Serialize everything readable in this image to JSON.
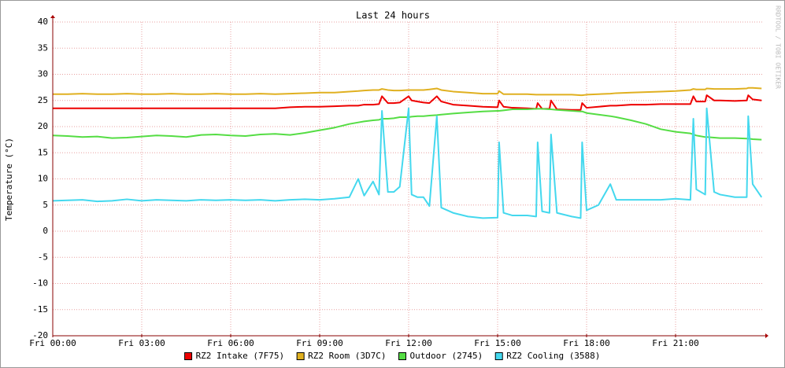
{
  "chart_data": {
    "type": "line",
    "title": "Last 24 hours",
    "y_label": "Temperature (°C)",
    "watermark": "RRDTOOL / TOBI OETIKER",
    "xlim": [
      0,
      23.92
    ],
    "xticks": [
      {
        "value": 0,
        "label": "Fri 00:00"
      },
      {
        "value": 3,
        "label": "Fri 03:00"
      },
      {
        "value": 6,
        "label": "Fri 06:00"
      },
      {
        "value": 9,
        "label": "Fri 09:00"
      },
      {
        "value": 12,
        "label": "Fri 12:00"
      },
      {
        "value": 15,
        "label": "Fri 15:00"
      },
      {
        "value": 18,
        "label": "Fri 18:00"
      },
      {
        "value": 21,
        "label": "Fri 21:00"
      }
    ],
    "ylim": [
      -20,
      40
    ],
    "yticks": [
      -20,
      -15,
      -10,
      -5,
      0,
      5,
      10,
      15,
      20,
      25,
      30,
      35,
      40
    ],
    "grid": true,
    "x": [
      0,
      0.5,
      1,
      1.5,
      2,
      2.5,
      3,
      3.5,
      4,
      4.5,
      5,
      5.5,
      6,
      6.5,
      7,
      7.5,
      8,
      8.5,
      9,
      9.5,
      10,
      10.3,
      10.5,
      10.8,
      11,
      11.1,
      11.3,
      11.5,
      11.7,
      12,
      12.1,
      12.3,
      12.5,
      12.7,
      12.95,
      13.1,
      13.5,
      14,
      14.5,
      15,
      15.05,
      15.2,
      15.5,
      16,
      16.3,
      16.35,
      16.5,
      16.75,
      16.8,
      17,
      17.5,
      17.8,
      17.85,
      18,
      18.4,
      18.8,
      19,
      19.5,
      20,
      20.5,
      21,
      21.5,
      21.6,
      21.7,
      22,
      22.05,
      22.3,
      22.5,
      23,
      23.4,
      23.45,
      23.6,
      23.9
    ],
    "series": [
      {
        "name": "RZ2 Intake (7F75)",
        "color": "#ee0000",
        "values": [
          23.5,
          23.5,
          23.5,
          23.5,
          23.5,
          23.5,
          23.5,
          23.5,
          23.5,
          23.5,
          23.5,
          23.5,
          23.5,
          23.5,
          23.5,
          23.5,
          23.7,
          23.8,
          23.8,
          23.9,
          24,
          24,
          24.2,
          24.2,
          24.3,
          25.8,
          24.5,
          24.5,
          24.6,
          25.8,
          25,
          24.8,
          24.6,
          24.5,
          25.8,
          24.8,
          24.2,
          24,
          23.8,
          23.7,
          25,
          23.8,
          23.6,
          23.5,
          23.4,
          24.5,
          23.4,
          23.4,
          25,
          23.3,
          23.2,
          23.2,
          24.5,
          23.6,
          23.8,
          24,
          24,
          24.2,
          24.2,
          24.3,
          24.3,
          24.3,
          25.8,
          24.8,
          24.8,
          26,
          25,
          25,
          24.9,
          25,
          26,
          25.2,
          25
        ]
      },
      {
        "name": "RZ2 Room (3D7C)",
        "color": "#e0b020",
        "values": [
          26.2,
          26.2,
          26.3,
          26.2,
          26.2,
          26.3,
          26.2,
          26.2,
          26.3,
          26.2,
          26.2,
          26.3,
          26.2,
          26.2,
          26.3,
          26.2,
          26.3,
          26.4,
          26.5,
          26.5,
          26.7,
          26.8,
          26.9,
          27,
          27,
          27.2,
          27,
          26.9,
          26.9,
          27,
          27,
          27,
          27,
          27.1,
          27.3,
          27,
          26.7,
          26.5,
          26.3,
          26.3,
          26.8,
          26.2,
          26.2,
          26.2,
          26.1,
          26.1,
          26.1,
          26.1,
          26.1,
          26.1,
          26.1,
          26,
          26,
          26.1,
          26.2,
          26.3,
          26.4,
          26.5,
          26.6,
          26.7,
          26.8,
          27,
          27.2,
          27.1,
          27.1,
          27.3,
          27.2,
          27.2,
          27.2,
          27.3,
          27.4,
          27.4,
          27.3
        ]
      },
      {
        "name": "Outdoor (2745)",
        "color": "#55dd44",
        "values": [
          18.3,
          18.2,
          18,
          18.1,
          17.8,
          17.9,
          18.1,
          18.3,
          18.2,
          18,
          18.4,
          18.5,
          18.3,
          18.2,
          18.5,
          18.6,
          18.4,
          18.8,
          19.3,
          19.8,
          20.5,
          20.8,
          21,
          21.2,
          21.3,
          21.5,
          21.5,
          21.6,
          21.8,
          21.8,
          21.9,
          22,
          22,
          22.1,
          22.2,
          22.3,
          22.5,
          22.7,
          22.9,
          23,
          23,
          23.1,
          23.3,
          23.3,
          23.4,
          23.4,
          23.4,
          23.3,
          23.3,
          23.2,
          23,
          22.9,
          22.9,
          22.6,
          22.3,
          22,
          21.8,
          21.2,
          20.5,
          19.5,
          19,
          18.7,
          18.5,
          18.3,
          18,
          18,
          17.9,
          17.8,
          17.8,
          17.7,
          17.7,
          17.6,
          17.5
        ]
      },
      {
        "name": "RZ2 Cooling (3588)",
        "color": "#44d8ee",
        "values": [
          5.8,
          5.9,
          6,
          5.7,
          5.8,
          6.1,
          5.8,
          6,
          5.9,
          5.8,
          6,
          5.9,
          6,
          5.9,
          6,
          5.8,
          6,
          6.1,
          6,
          6.2,
          6.5,
          10,
          6.8,
          9.5,
          7,
          23,
          7.5,
          7.5,
          8.5,
          23.5,
          7,
          6.5,
          6.5,
          4.8,
          22,
          4.5,
          3.5,
          2.8,
          2.5,
          2.6,
          17,
          3.5,
          3,
          3,
          2.8,
          17,
          3.8,
          3.5,
          18.5,
          3.5,
          2.8,
          2.5,
          17,
          4,
          5,
          9,
          6,
          6,
          6,
          6,
          6.2,
          6,
          21.5,
          8,
          7,
          23.5,
          7.5,
          7,
          6.5,
          6.5,
          22,
          9,
          6.5
        ]
      }
    ]
  }
}
